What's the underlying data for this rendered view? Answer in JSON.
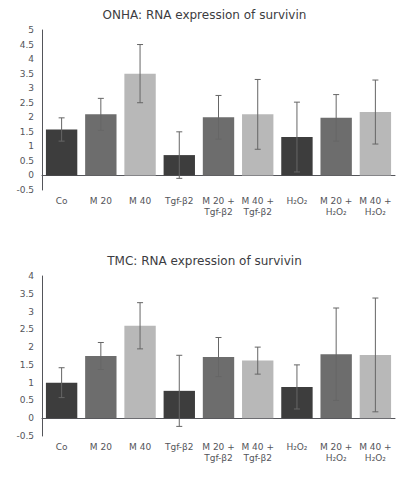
{
  "chart_data": [
    {
      "type": "bar",
      "title": "ONHA: RNA expression of survivin",
      "categories": [
        "Co",
        "M 20",
        "M 40",
        "Tgf-β2",
        "M 20 +\nTgf-β2",
        "M 40 +\nTgf-β2",
        "H₂O₂",
        "M 20 +\nH₂O₂",
        "M 40 +\nH₂O₂"
      ],
      "values": [
        1.58,
        2.1,
        3.5,
        0.7,
        2.0,
        2.1,
        1.32,
        1.98,
        2.18
      ],
      "errors": [
        0.4,
        0.55,
        1.0,
        0.8,
        0.75,
        1.2,
        1.2,
        0.8,
        1.1
      ],
      "colors": [
        "#3d3d3d",
        "#6d6d6d",
        "#b8b8b8",
        "#3d3d3d",
        "#6d6d6d",
        "#b8b8b8",
        "#3d3d3d",
        "#6d6d6d",
        "#b8b8b8"
      ],
      "ylim": [
        -0.5,
        5
      ],
      "yticks": [
        -0.5,
        0,
        0.5,
        1,
        1.5,
        2,
        2.5,
        3,
        3.5,
        4,
        4.5,
        5
      ],
      "grid": false
    },
    {
      "type": "bar",
      "title": "TMC: RNA expression of survivin",
      "categories": [
        "Co",
        "M 20",
        "M 40",
        "Tgf-β2",
        "M 20 +\nTgf-β2",
        "M 40 +\nTgf-β2",
        "H₂O₂",
        "M 20 +\nH₂O₂",
        "M 40 +\nH₂O₂"
      ],
      "values": [
        1.0,
        1.75,
        2.6,
        0.77,
        1.72,
        1.62,
        0.88,
        1.8,
        1.78
      ],
      "errors": [
        0.42,
        0.38,
        0.65,
        1.0,
        0.55,
        0.38,
        0.62,
        1.3,
        1.6
      ],
      "colors": [
        "#3d3d3d",
        "#6d6d6d",
        "#b8b8b8",
        "#3d3d3d",
        "#6d6d6d",
        "#b8b8b8",
        "#3d3d3d",
        "#6d6d6d",
        "#b8b8b8"
      ],
      "ylim": [
        -0.5,
        4
      ],
      "yticks": [
        -0.5,
        0,
        0.5,
        1,
        1.5,
        2,
        2.5,
        3,
        3.5,
        4
      ],
      "grid": false
    }
  ]
}
